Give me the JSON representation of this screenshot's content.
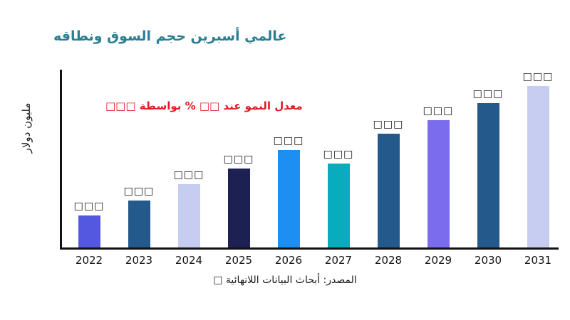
{
  "chart_data": {
    "type": "bar",
    "title": "عالمي أسبرين حجم السوق ونطاقه",
    "title_color": "#2b7f93",
    "ylabel": "مليون دولار",
    "xlabel": "",
    "categories": [
      "2022",
      "2023",
      "2024",
      "2025",
      "2026",
      "2027",
      "2028",
      "2029",
      "2030",
      "2031"
    ],
    "values": [
      45,
      67,
      90,
      112,
      138,
      119,
      161,
      180,
      205,
      229
    ],
    "ylim": [
      0,
      250
    ],
    "grid": false,
    "legend": null,
    "bar_labels": [
      "□□□",
      "□□□",
      "□□□",
      "□□□",
      "□□□",
      "□□□",
      "□□□",
      "□□□",
      "□□□",
      "□□□"
    ],
    "bar_colors": [
      "#5457e0",
      "#24598c",
      "#c7ccf1",
      "#1c2053",
      "#1d8ff2",
      "#09acbd",
      "#24598c",
      "#7b6cee",
      "#24598c",
      "#c7ccf1"
    ],
    "annotation": "معدل النمو عند □□ % بواسطة □□□",
    "annotation_color": "#e01b24",
    "source": "المصدر: أبحاث البيانات اللانهائية □",
    "axis_color": "#111111"
  }
}
